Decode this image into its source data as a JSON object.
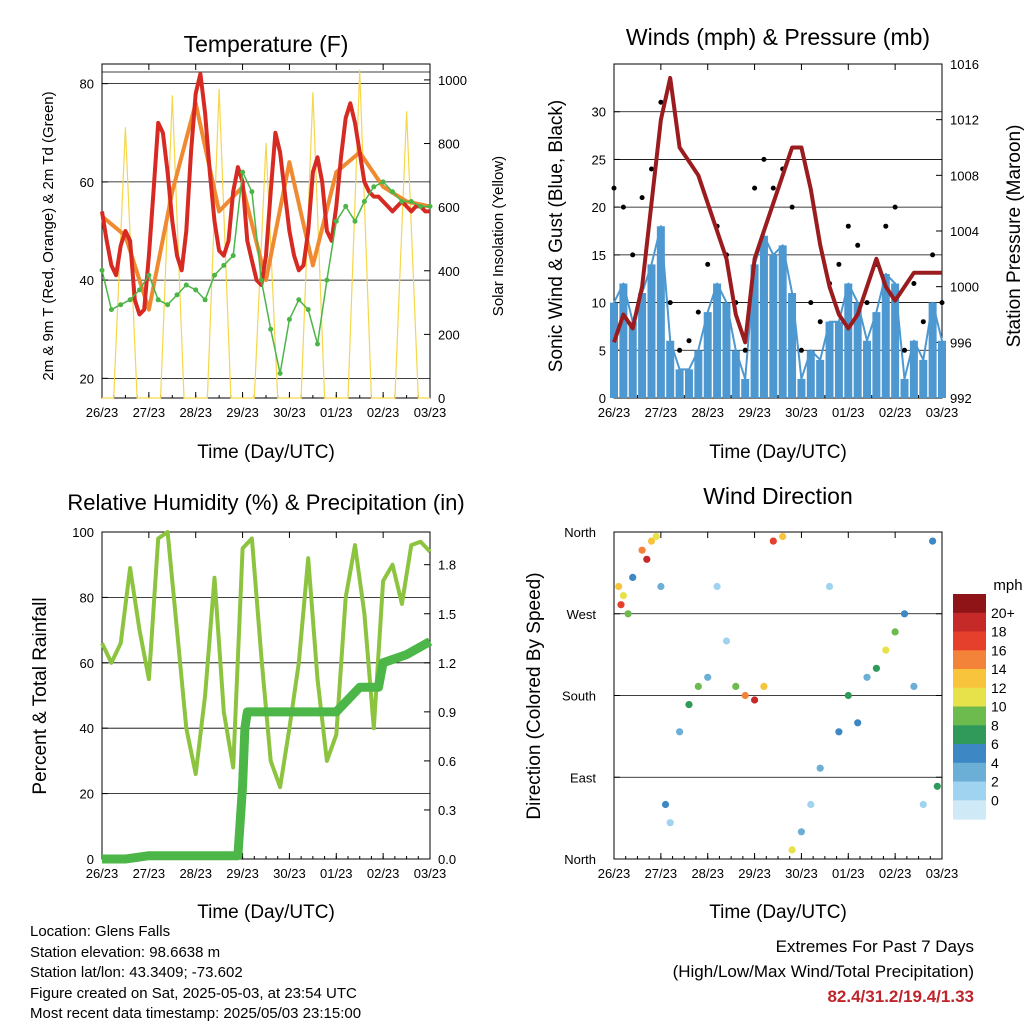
{
  "x_ticks": [
    "26/23",
    "27/23",
    "28/23",
    "29/23",
    "30/23",
    "01/23",
    "02/23",
    "03/23"
  ],
  "panels": {
    "temperature": {
      "title": "Temperature (F)",
      "xlabel": "Time (Day/UTC)",
      "ylabel_left": "2m & 9m T (Red, Orange) & 2m Td (Green)",
      "ylabel_right": "Solar Insolation (Yellow)",
      "yticks_left": [
        "20",
        "40",
        "60",
        "80"
      ],
      "yticks_right": [
        "0",
        "200",
        "400",
        "600",
        "800",
        "1000"
      ]
    },
    "winds": {
      "title": "Winds (mph) & Pressure (mb)",
      "xlabel": "Time (Day/UTC)",
      "ylabel_left": "Sonic Wind & Gust (Blue, Black)",
      "ylabel_right": "Station Pressure (Maroon)",
      "yticks_left": [
        "0",
        "5",
        "10",
        "15",
        "20",
        "25",
        "30"
      ],
      "yticks_right": [
        "992",
        "996",
        "1000",
        "1004",
        "1008",
        "1012",
        "1016"
      ]
    },
    "humidity": {
      "title": "Relative Humidity (%) & Precipitation (in)",
      "xlabel": "Time (Day/UTC)",
      "ylabel_left": "Percent & Total Rainfall",
      "yticks_left": [
        "0",
        "20",
        "40",
        "60",
        "80",
        "100"
      ],
      "yticks_right": [
        "0.0",
        "0.3",
        "0.6",
        "0.9",
        "1.2",
        "1.5",
        "1.8"
      ]
    },
    "direction": {
      "title": "Wind Direction",
      "xlabel": "Time (Day/UTC)",
      "ylabel_left": "Direction (Colored By Speed)",
      "yticks_left": [
        "North",
        "East",
        "South",
        "West",
        "North"
      ],
      "colorbar_title": "mph",
      "colorbar_labels": [
        "0",
        "2",
        "4",
        "6",
        "8",
        "10",
        "12",
        "14",
        "16",
        "18",
        "20+"
      ],
      "colorbar_colors": [
        "#cfe9f7",
        "#9fd3ef",
        "#6baed6",
        "#3d87c4",
        "#2f9a5a",
        "#6dbb4f",
        "#e8e24a",
        "#f8c43c",
        "#f4833a",
        "#e4402c",
        "#c62a28",
        "#8e1417"
      ]
    }
  },
  "chart_data": [
    {
      "type": "line",
      "title": "Temperature (F)",
      "xlabel": "Time (Day/UTC)",
      "ylabel": "2m & 9m T (Red, Orange) & 2m Td (Green)",
      "y2label": "Solar Insolation (Yellow)",
      "x": [
        "26/23",
        "27/23",
        "28/23",
        "29/23",
        "30/23",
        "01/23",
        "02/23",
        "03/23"
      ],
      "ylim": [
        16,
        84
      ],
      "y2lim": [
        0,
        1050
      ],
      "series": [
        {
          "color": "#d62a22",
          "axis": "left",
          "x": [
            0,
            0.1,
            0.2,
            0.3,
            0.4,
            0.5,
            0.6,
            0.7,
            0.8,
            0.9,
            1.0,
            1.1,
            1.2,
            1.3,
            1.4,
            1.5,
            1.6,
            1.7,
            1.8,
            1.9,
            2.0,
            2.1,
            2.2,
            2.3,
            2.4,
            2.5,
            2.6,
            2.7,
            2.8,
            2.9,
            3.0,
            3.1,
            3.2,
            3.3,
            3.4,
            3.5,
            3.6,
            3.7,
            3.8,
            3.9,
            4.0,
            4.1,
            4.2,
            4.3,
            4.4,
            4.5,
            4.6,
            4.7,
            4.8,
            4.9,
            5.0,
            5.1,
            5.2,
            5.3,
            5.4,
            5.5,
            5.6,
            5.7,
            5.8,
            5.9,
            6.0,
            6.1,
            6.2,
            6.3,
            6.4,
            6.5,
            6.6,
            6.7,
            6.8,
            6.9,
            7.0
          ],
          "values": [
            54,
            48,
            43,
            41,
            47,
            50,
            48,
            36,
            33,
            34,
            45,
            58,
            72,
            70,
            62,
            52,
            45,
            42,
            50,
            66,
            78,
            82,
            74,
            62,
            52,
            46,
            45,
            48,
            58,
            63,
            60,
            48,
            44,
            40,
            39,
            45,
            58,
            70,
            66,
            58,
            50,
            45,
            42,
            43,
            50,
            62,
            65,
            60,
            50,
            48,
            55,
            65,
            73,
            76,
            72,
            66,
            60,
            58,
            57,
            57,
            56,
            55,
            54,
            55,
            56,
            55,
            54,
            55,
            55,
            54,
            54
          ]
        },
        {
          "color": "#f08a30",
          "axis": "left",
          "x": [
            0,
            0.5,
            1.0,
            1.5,
            2.0,
            2.5,
            3.0,
            3.5,
            4.0,
            4.5,
            5.0,
            5.5,
            6.0,
            6.5,
            7.0
          ],
          "values": [
            53,
            49,
            34,
            58,
            76,
            54,
            59,
            40,
            64,
            43,
            62,
            66,
            59,
            56,
            55
          ]
        },
        {
          "color": "#4db548",
          "axis": "left",
          "x": [
            0,
            0.2,
            0.4,
            0.6,
            0.8,
            1.0,
            1.2,
            1.4,
            1.6,
            1.8,
            2.0,
            2.2,
            2.4,
            2.6,
            2.8,
            3.0,
            3.2,
            3.4,
            3.6,
            3.8,
            4.0,
            4.2,
            4.4,
            4.6,
            4.8,
            5.0,
            5.2,
            5.4,
            5.6,
            5.8,
            6.0,
            6.2,
            6.4,
            6.6,
            6.8,
            7.0
          ],
          "values": [
            42,
            34,
            35,
            36,
            38,
            41,
            36,
            35,
            37,
            39,
            38,
            36,
            41,
            43,
            45,
            62,
            58,
            40,
            30,
            21,
            32,
            36,
            34,
            27,
            40,
            52,
            55,
            52,
            56,
            59,
            60,
            58,
            56,
            56,
            55,
            55
          ]
        },
        {
          "color": "#f6d64a",
          "axis": "right",
          "x": [
            0,
            0.25,
            0.5,
            0.75,
            1.0,
            1.25,
            1.5,
            1.75,
            2.0,
            2.25,
            2.5,
            2.75,
            3.0,
            3.25,
            3.5,
            3.75,
            4.0,
            4.25,
            4.5,
            4.75,
            5.0,
            5.25,
            5.5,
            5.75,
            6.0,
            6.25,
            6.5,
            6.75,
            7.0
          ],
          "values": [
            0,
            0,
            850,
            0,
            0,
            0,
            950,
            0,
            0,
            0,
            970,
            0,
            0,
            0,
            800,
            0,
            0,
            0,
            960,
            0,
            0,
            0,
            1030,
            0,
            0,
            0,
            900,
            0,
            0
          ]
        }
      ]
    },
    {
      "type": "scatter",
      "title": "Winds (mph) & Pressure (mb)",
      "xlabel": "Time (Day/UTC)",
      "ylabel": "Sonic Wind & Gust (Blue, Black)",
      "y2label": "Station Pressure (Maroon)",
      "x": [
        "26/23",
        "27/23",
        "28/23",
        "29/23",
        "30/23",
        "01/23",
        "02/23",
        "03/23"
      ],
      "ylim": [
        0,
        35
      ],
      "y2lim": [
        992,
        1016
      ],
      "series": [
        {
          "color": "#4d98d0",
          "axis": "left",
          "x": [
            0,
            0.2,
            0.4,
            0.6,
            0.8,
            1.0,
            1.2,
            1.4,
            1.6,
            1.8,
            2.0,
            2.2,
            2.4,
            2.6,
            2.8,
            3.0,
            3.2,
            3.4,
            3.6,
            3.8,
            4.0,
            4.2,
            4.4,
            4.6,
            4.8,
            5.0,
            5.2,
            5.4,
            5.6,
            5.8,
            6.0,
            6.2,
            6.4,
            6.6,
            6.8,
            7.0
          ],
          "values": [
            10,
            12,
            8,
            11,
            14,
            18,
            6,
            3,
            3,
            5,
            9,
            12,
            10,
            5,
            2,
            14,
            17,
            15,
            16,
            11,
            2,
            5,
            4,
            8,
            8,
            12,
            10,
            6,
            9,
            13,
            12,
            2,
            6,
            4,
            10,
            6
          ]
        },
        {
          "color": "#000000",
          "axis": "left",
          "x": [
            0,
            0.2,
            0.4,
            0.6,
            0.8,
            1.0,
            1.2,
            1.4,
            1.6,
            1.8,
            2.0,
            2.2,
            2.4,
            2.6,
            2.8,
            3.0,
            3.2,
            3.4,
            3.6,
            3.8,
            4.0,
            4.2,
            4.4,
            4.6,
            4.8,
            5.0,
            5.2,
            5.4,
            5.6,
            5.8,
            6.0,
            6.2,
            6.4,
            6.6,
            6.8,
            7.0
          ],
          "values": [
            22,
            20,
            15,
            21,
            24,
            31,
            10,
            5,
            6,
            9,
            14,
            18,
            15,
            10,
            5,
            22,
            25,
            22,
            24,
            20,
            5,
            10,
            8,
            12,
            14,
            18,
            16,
            10,
            14,
            18,
            20,
            5,
            12,
            8,
            15,
            10
          ]
        },
        {
          "color": "#9b1c1f",
          "axis": "right",
          "x": [
            0,
            0.2,
            0.4,
            0.6,
            0.8,
            1.0,
            1.2,
            1.4,
            1.6,
            1.8,
            2.0,
            2.2,
            2.4,
            2.6,
            2.8,
            3.0,
            3.2,
            3.4,
            3.6,
            3.8,
            4.0,
            4.2,
            4.4,
            4.6,
            4.8,
            5.0,
            5.2,
            5.4,
            5.6,
            5.8,
            6.0,
            6.2,
            6.4,
            6.6,
            6.8,
            7.0
          ],
          "values": [
            996,
            998,
            997,
            1000,
            1006,
            1012,
            1015,
            1010,
            1009,
            1008,
            1006,
            1004,
            1002,
            998,
            996,
            1002,
            1004,
            1006,
            1008,
            1010,
            1010,
            1007,
            1003,
            1000,
            998,
            997,
            998,
            1000,
            1002,
            1000,
            999,
            1000,
            1001,
            1001,
            1001,
            1001
          ]
        }
      ]
    },
    {
      "type": "line",
      "title": "Relative Humidity (%) & Precipitation (in)",
      "xlabel": "Time (Day/UTC)",
      "ylabel": "Percent & Total Rainfall",
      "x": [
        "26/23",
        "27/23",
        "28/23",
        "29/23",
        "30/23",
        "01/23",
        "02/23",
        "03/23"
      ],
      "ylim": [
        0,
        100
      ],
      "y2lim": [
        0,
        2.0
      ],
      "series": [
        {
          "color": "#8cc43f",
          "axis": "left",
          "x": [
            0,
            0.2,
            0.4,
            0.6,
            0.8,
            1.0,
            1.2,
            1.4,
            1.6,
            1.8,
            2.0,
            2.2,
            2.4,
            2.6,
            2.8,
            3.0,
            3.2,
            3.4,
            3.6,
            3.8,
            4.0,
            4.2,
            4.4,
            4.6,
            4.8,
            5.0,
            5.2,
            5.4,
            5.6,
            5.8,
            6.0,
            6.2,
            6.4,
            6.6,
            6.8,
            7.0
          ],
          "values": [
            66,
            60,
            66,
            89,
            70,
            55,
            98,
            100,
            70,
            40,
            26,
            50,
            86,
            45,
            28,
            95,
            98,
            62,
            30,
            22,
            40,
            60,
            92,
            55,
            30,
            38,
            80,
            96,
            75,
            40,
            85,
            90,
            78,
            96,
            97,
            94
          ]
        },
        {
          "color": "#4cb648",
          "axis": "right",
          "x": [
            0,
            0.5,
            1.0,
            1.5,
            2.0,
            2.5,
            2.9,
            3.0,
            3.05,
            3.1,
            3.5,
            4.0,
            4.5,
            5.0,
            5.5,
            5.9,
            6.0,
            6.5,
            7.0
          ],
          "values": [
            0,
            0,
            0.02,
            0.02,
            0.02,
            0.02,
            0.02,
            0.45,
            0.8,
            0.9,
            0.9,
            0.9,
            0.9,
            0.9,
            1.05,
            1.05,
            1.2,
            1.25,
            1.33
          ]
        }
      ]
    },
    {
      "type": "scatter",
      "title": "Wind Direction",
      "xlabel": "Time (Day/UTC)",
      "ylabel": "Direction (Colored By Speed)",
      "x": [
        "26/23",
        "27/23",
        "28/23",
        "29/23",
        "30/23",
        "01/23",
        "02/23",
        "03/23"
      ],
      "y_categories": [
        "North",
        "East",
        "South",
        "West",
        "North"
      ],
      "colorbar": {
        "title": "mph",
        "labels": [
          "0",
          "2",
          "4",
          "6",
          "8",
          "10",
          "12",
          "14",
          "16",
          "18",
          "20+"
        ]
      },
      "points": [
        {
          "x": 0.1,
          "dir": 300,
          "speed": 14
        },
        {
          "x": 0.15,
          "dir": 280,
          "speed": 18
        },
        {
          "x": 0.2,
          "dir": 290,
          "speed": 12
        },
        {
          "x": 0.3,
          "dir": 270,
          "speed": 10
        },
        {
          "x": 0.4,
          "dir": 310,
          "speed": 6
        },
        {
          "x": 0.6,
          "dir": 340,
          "speed": 16
        },
        {
          "x": 0.7,
          "dir": 330,
          "speed": 20
        },
        {
          "x": 0.8,
          "dir": 350,
          "speed": 14
        },
        {
          "x": 0.9,
          "dir": 355,
          "speed": 12
        },
        {
          "x": 1.0,
          "dir": 300,
          "speed": 4
        },
        {
          "x": 1.1,
          "dir": 60,
          "speed": 6
        },
        {
          "x": 1.2,
          "dir": 40,
          "speed": 2
        },
        {
          "x": 1.4,
          "dir": 140,
          "speed": 4
        },
        {
          "x": 1.6,
          "dir": 170,
          "speed": 8
        },
        {
          "x": 1.8,
          "dir": 190,
          "speed": 10
        },
        {
          "x": 2.0,
          "dir": 200,
          "speed": 4
        },
        {
          "x": 2.2,
          "dir": 300,
          "speed": 2
        },
        {
          "x": 2.4,
          "dir": 240,
          "speed": 2
        },
        {
          "x": 2.6,
          "dir": 190,
          "speed": 10
        },
        {
          "x": 2.8,
          "dir": 180,
          "speed": 16
        },
        {
          "x": 3.0,
          "dir": 175,
          "speed": 20
        },
        {
          "x": 3.2,
          "dir": 190,
          "speed": 14
        },
        {
          "x": 3.4,
          "dir": 350,
          "speed": 18
        },
        {
          "x": 3.6,
          "dir": 355,
          "speed": 14
        },
        {
          "x": 3.8,
          "dir": 10,
          "speed": 12
        },
        {
          "x": 4.0,
          "dir": 30,
          "speed": 4
        },
        {
          "x": 4.2,
          "dir": 60,
          "speed": 2
        },
        {
          "x": 4.4,
          "dir": 100,
          "speed": 4
        },
        {
          "x": 4.6,
          "dir": 300,
          "speed": 2
        },
        {
          "x": 4.8,
          "dir": 140,
          "speed": 6
        },
        {
          "x": 5.0,
          "dir": 180,
          "speed": 8
        },
        {
          "x": 5.2,
          "dir": 150,
          "speed": 6
        },
        {
          "x": 5.4,
          "dir": 200,
          "speed": 4
        },
        {
          "x": 5.6,
          "dir": 210,
          "speed": 8
        },
        {
          "x": 5.8,
          "dir": 230,
          "speed": 12
        },
        {
          "x": 6.0,
          "dir": 250,
          "speed": 10
        },
        {
          "x": 6.2,
          "dir": 270,
          "speed": 6
        },
        {
          "x": 6.4,
          "dir": 190,
          "speed": 4
        },
        {
          "x": 6.6,
          "dir": 60,
          "speed": 2
        },
        {
          "x": 6.8,
          "dir": 350,
          "speed": 6
        },
        {
          "x": 6.9,
          "dir": 80,
          "speed": 8
        }
      ]
    }
  ],
  "info": {
    "location": "Location: Glens Falls",
    "elevation": "Station elevation: 98.6638 m",
    "latlon": "Station lat/lon: 43.3409; -73.602",
    "created": "Figure created on Sat, 2025-05-03, at 23:54 UTC",
    "recent": "Most recent data timestamp: 2025/05/03 23:15:00"
  },
  "extremes": {
    "title": "Extremes For Past 7 Days",
    "subtitle": "(High/Low/Max Wind/Total Precipitation)",
    "values": "82.4/31.2/19.4/1.33"
  }
}
